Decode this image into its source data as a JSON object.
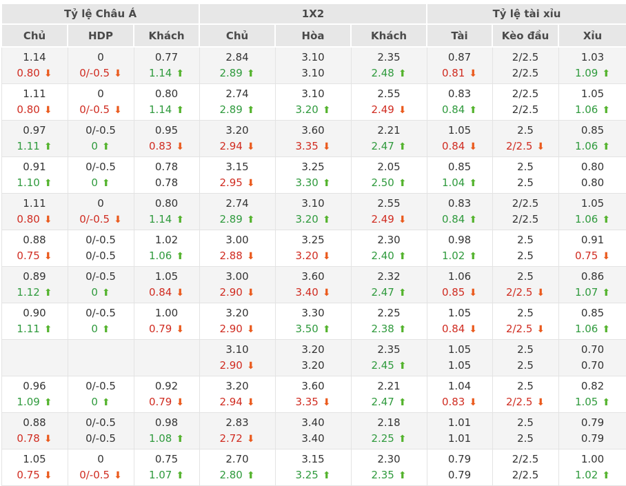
{
  "table": {
    "groups": [
      {
        "label": "Tỷ lệ Châu Á",
        "columns": [
          "Chủ",
          "HDP",
          "Khách"
        ]
      },
      {
        "label": "1X2",
        "columns": [
          "Chủ",
          "Hòa",
          "Khách"
        ]
      },
      {
        "label": "Tỷ lệ tài xỉu",
        "columns": [
          "Tài",
          "Kèo đầu",
          "Xỉu"
        ]
      }
    ],
    "column_keys": [
      "ah-home",
      "ah-hdp",
      "ah-away",
      "1x2-home",
      "1x2-draw",
      "1x2-away",
      "ou-over",
      "ou-line",
      "ou-under"
    ],
    "rows": [
      [
        [
          "1.14",
          "0.80",
          "down"
        ],
        [
          "0",
          "0/-0.5",
          "down"
        ],
        [
          "0.77",
          "1.14",
          "up"
        ],
        [
          "2.84",
          "2.89",
          "up"
        ],
        [
          "3.10",
          "3.10",
          "none"
        ],
        [
          "2.35",
          "2.48",
          "up"
        ],
        [
          "0.87",
          "0.81",
          "down"
        ],
        [
          "2/2.5",
          "2/2.5",
          "none"
        ],
        [
          "1.03",
          "1.09",
          "up"
        ]
      ],
      [
        [
          "1.11",
          "0.80",
          "down"
        ],
        [
          "0",
          "0/-0.5",
          "down"
        ],
        [
          "0.80",
          "1.14",
          "up"
        ],
        [
          "2.74",
          "2.89",
          "up"
        ],
        [
          "3.10",
          "3.20",
          "up"
        ],
        [
          "2.55",
          "2.49",
          "down"
        ],
        [
          "0.83",
          "0.84",
          "up"
        ],
        [
          "2/2.5",
          "2/2.5",
          "none"
        ],
        [
          "1.05",
          "1.06",
          "up"
        ]
      ],
      [
        [
          "0.97",
          "1.11",
          "up"
        ],
        [
          "0/-0.5",
          "0",
          "up"
        ],
        [
          "0.95",
          "0.83",
          "down"
        ],
        [
          "3.20",
          "2.94",
          "down"
        ],
        [
          "3.60",
          "3.35",
          "down"
        ],
        [
          "2.21",
          "2.47",
          "up"
        ],
        [
          "1.05",
          "0.84",
          "down"
        ],
        [
          "2.5",
          "2/2.5",
          "down"
        ],
        [
          "0.85",
          "1.06",
          "up"
        ]
      ],
      [
        [
          "0.91",
          "1.10",
          "up"
        ],
        [
          "0/-0.5",
          "0",
          "up"
        ],
        [
          "0.78",
          "0.78",
          "none"
        ],
        [
          "3.15",
          "2.95",
          "down"
        ],
        [
          "3.25",
          "3.30",
          "up"
        ],
        [
          "2.05",
          "2.50",
          "up"
        ],
        [
          "0.85",
          "1.04",
          "up"
        ],
        [
          "2.5",
          "2.5",
          "none"
        ],
        [
          "0.80",
          "0.80",
          "none"
        ]
      ],
      [
        [
          "1.11",
          "0.80",
          "down"
        ],
        [
          "0",
          "0/-0.5",
          "down"
        ],
        [
          "0.80",
          "1.14",
          "up"
        ],
        [
          "2.74",
          "2.89",
          "up"
        ],
        [
          "3.10",
          "3.20",
          "up"
        ],
        [
          "2.55",
          "2.49",
          "down"
        ],
        [
          "0.83",
          "0.84",
          "up"
        ],
        [
          "2/2.5",
          "2/2.5",
          "none"
        ],
        [
          "1.05",
          "1.06",
          "up"
        ]
      ],
      [
        [
          "0.88",
          "0.75",
          "down"
        ],
        [
          "0/-0.5",
          "0/-0.5",
          "none"
        ],
        [
          "1.02",
          "1.06",
          "up"
        ],
        [
          "3.00",
          "2.88",
          "down"
        ],
        [
          "3.25",
          "3.20",
          "down"
        ],
        [
          "2.30",
          "2.40",
          "up"
        ],
        [
          "0.98",
          "1.02",
          "up"
        ],
        [
          "2.5",
          "2.5",
          "none"
        ],
        [
          "0.91",
          "0.75",
          "down"
        ]
      ],
      [
        [
          "0.89",
          "1.12",
          "up"
        ],
        [
          "0/-0.5",
          "0",
          "up"
        ],
        [
          "1.05",
          "0.84",
          "down"
        ],
        [
          "3.00",
          "2.90",
          "down"
        ],
        [
          "3.60",
          "3.40",
          "down"
        ],
        [
          "2.32",
          "2.47",
          "up"
        ],
        [
          "1.06",
          "0.85",
          "down"
        ],
        [
          "2.5",
          "2/2.5",
          "down"
        ],
        [
          "0.86",
          "1.07",
          "up"
        ]
      ],
      [
        [
          "0.90",
          "1.11",
          "up"
        ],
        [
          "0/-0.5",
          "0",
          "up"
        ],
        [
          "1.00",
          "0.79",
          "down"
        ],
        [
          "3.20",
          "2.90",
          "down"
        ],
        [
          "3.30",
          "3.50",
          "up"
        ],
        [
          "2.25",
          "2.38",
          "up"
        ],
        [
          "1.05",
          "0.84",
          "down"
        ],
        [
          "2.5",
          "2/2.5",
          "down"
        ],
        [
          "0.85",
          "1.06",
          "up"
        ]
      ],
      [
        [
          "",
          "",
          "none"
        ],
        [
          "",
          "",
          "none"
        ],
        [
          "",
          "",
          "none"
        ],
        [
          "3.10",
          "2.90",
          "down"
        ],
        [
          "3.20",
          "3.20",
          "none"
        ],
        [
          "2.35",
          "2.45",
          "up"
        ],
        [
          "1.05",
          "1.05",
          "none"
        ],
        [
          "2.5",
          "2.5",
          "none"
        ],
        [
          "0.70",
          "0.70",
          "none"
        ]
      ],
      [
        [
          "0.96",
          "1.09",
          "up"
        ],
        [
          "0/-0.5",
          "0",
          "up"
        ],
        [
          "0.92",
          "0.79",
          "down"
        ],
        [
          "3.20",
          "2.94",
          "down"
        ],
        [
          "3.60",
          "3.35",
          "down"
        ],
        [
          "2.21",
          "2.47",
          "up"
        ],
        [
          "1.04",
          "0.83",
          "down"
        ],
        [
          "2.5",
          "2/2.5",
          "down"
        ],
        [
          "0.82",
          "1.05",
          "up"
        ]
      ],
      [
        [
          "0.88",
          "0.78",
          "down"
        ],
        [
          "0/-0.5",
          "0/-0.5",
          "none"
        ],
        [
          "0.98",
          "1.08",
          "up"
        ],
        [
          "2.83",
          "2.72",
          "down"
        ],
        [
          "3.40",
          "3.40",
          "none"
        ],
        [
          "2.18",
          "2.25",
          "up"
        ],
        [
          "1.01",
          "1.01",
          "none"
        ],
        [
          "2.5",
          "2.5",
          "none"
        ],
        [
          "0.79",
          "0.79",
          "none"
        ]
      ],
      [
        [
          "1.05",
          "0.75",
          "down"
        ],
        [
          "0",
          "0/-0.5",
          "down"
        ],
        [
          "0.75",
          "1.07",
          "up"
        ],
        [
          "2.70",
          "2.80",
          "up"
        ],
        [
          "3.15",
          "3.25",
          "up"
        ],
        [
          "2.30",
          "2.35",
          "up"
        ],
        [
          "0.79",
          "0.79",
          "none"
        ],
        [
          "2/2.5",
          "2/2.5",
          "none"
        ],
        [
          "1.00",
          "1.02",
          "up"
        ]
      ]
    ]
  },
  "icons": {
    "up": "⬆",
    "down": "⬇"
  },
  "colors": {
    "up_text": "#2f9a3d",
    "up_arrow": "#54b32d",
    "down_text": "#d02c21",
    "down_arrow": "#ea5a1d",
    "neutral_text": "#333333",
    "header_bg": "#e7e7e7",
    "alt_row_bg": "#f4f4f4"
  }
}
